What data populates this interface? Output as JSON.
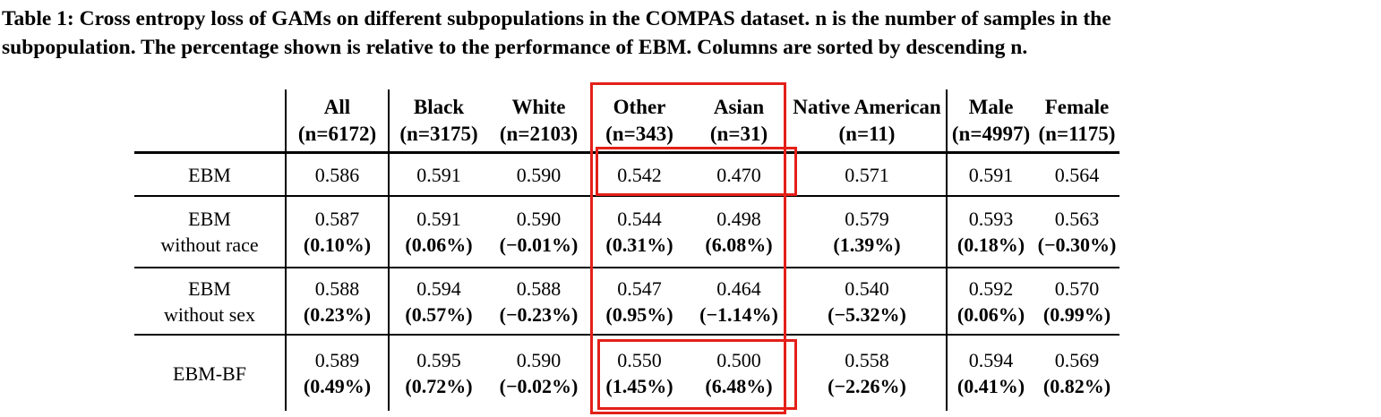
{
  "caption": {
    "line1": "Table 1: Cross entropy loss of GAMs on different subpopulations in the COMPAS dataset. n is the number of samples in the",
    "line2": "subpopulation. The percentage shown is relative to the performance of EBM. Columns are sorted by descending n."
  },
  "table": {
    "columns": [
      {
        "name": "All",
        "n": "(n=6172)"
      },
      {
        "name": "Black",
        "n": "(n=3175)"
      },
      {
        "name": "White",
        "n": "(n=2103)"
      },
      {
        "name": "Other",
        "n": "(n=343)"
      },
      {
        "name": "Asian",
        "n": "(n=31)"
      },
      {
        "name": "Native American",
        "n": "(n=11)"
      },
      {
        "name": "Male",
        "n": "(n=4997)"
      },
      {
        "name": "Female",
        "n": "(n=1175)"
      }
    ],
    "rows": [
      {
        "label_line1": "EBM",
        "label_line2": "",
        "values": [
          "0.586",
          "0.591",
          "0.590",
          "0.542",
          "0.470",
          "0.571",
          "0.591",
          "0.564"
        ],
        "percents": [
          "",
          "",
          "",
          "",
          "",
          "",
          "",
          ""
        ]
      },
      {
        "label_line1": "EBM",
        "label_line2": "without race",
        "values": [
          "0.587",
          "0.591",
          "0.590",
          "0.544",
          "0.498",
          "0.579",
          "0.593",
          "0.563"
        ],
        "percents": [
          "(0.10%)",
          "(0.06%)",
          "(−0.01%)",
          "(0.31%)",
          "(6.08%)",
          "(1.39%)",
          "(0.18%)",
          "(−0.30%)"
        ]
      },
      {
        "label_line1": "EBM",
        "label_line2": "without sex",
        "values": [
          "0.588",
          "0.594",
          "0.588",
          "0.547",
          "0.464",
          "0.540",
          "0.592",
          "0.570"
        ],
        "percents": [
          "(0.23%)",
          "(0.57%)",
          "(−0.23%)",
          "(0.95%)",
          "(−1.14%)",
          "(−5.32%)",
          "(0.06%)",
          "(0.99%)"
        ]
      },
      {
        "label_line1": "EBM-BF",
        "label_line2": "",
        "values": [
          "0.589",
          "0.595",
          "0.590",
          "0.550",
          "0.500",
          "0.558",
          "0.594",
          "0.569"
        ],
        "percents": [
          "(0.49%)",
          "(0.72%)",
          "(−0.02%)",
          "(1.45%)",
          "(6.48%)",
          "(−2.26%)",
          "(0.41%)",
          "(0.82%)"
        ]
      }
    ]
  },
  "annotations": {
    "highlight_color": "#e32019",
    "boxes": [
      {
        "id": "other-asian-columns",
        "covers": "Other and Asian header columns, full table height"
      },
      {
        "id": "ebm-row-other-asian",
        "covers": "EBM row values for Other and Asian"
      },
      {
        "id": "ebmbf-row-other-asian",
        "covers": "EBM-BF row values for Other and Asian"
      }
    ]
  }
}
